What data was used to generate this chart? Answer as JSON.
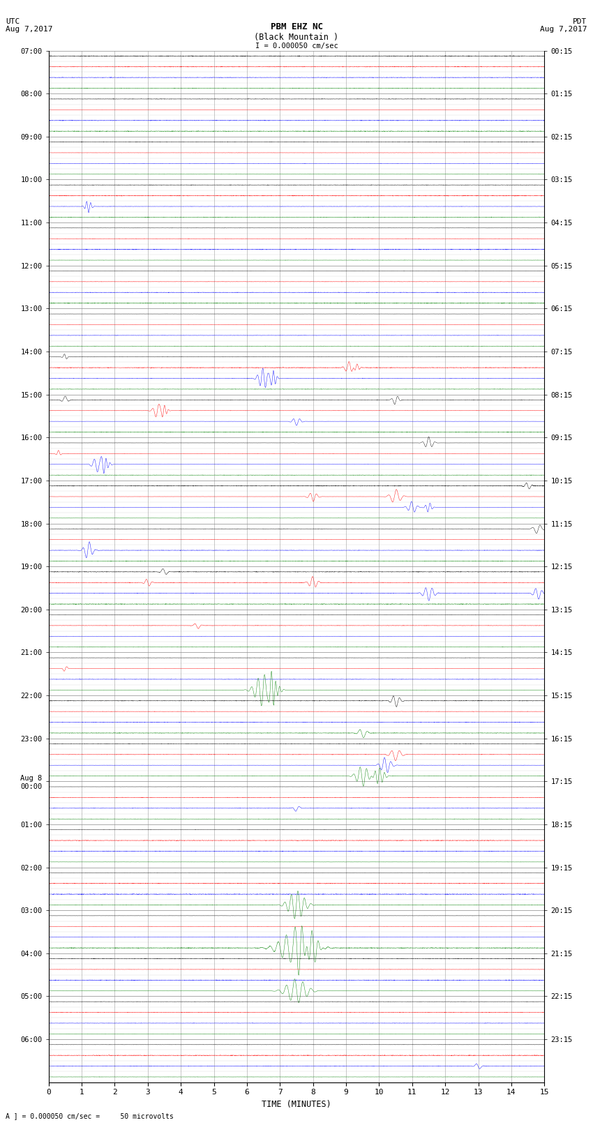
{
  "title_line1": "PBM EHZ NC",
  "title_line2": "(Black Mountain )",
  "scale_label": "I = 0.000050 cm/sec",
  "utc_label": "UTC",
  "utc_date": "Aug 7,2017",
  "pdt_label": "PDT",
  "pdt_date": "Aug 7,2017",
  "xlabel": "TIME (MINUTES)",
  "bottom_label": "A ] = 0.000050 cm/sec =     50 microvolts",
  "left_times_utc": [
    "07:00",
    "08:00",
    "09:00",
    "10:00",
    "11:00",
    "12:00",
    "13:00",
    "14:00",
    "15:00",
    "16:00",
    "17:00",
    "18:00",
    "19:00",
    "20:00",
    "21:00",
    "22:00",
    "23:00",
    "Aug 8\n00:00",
    "01:00",
    "02:00",
    "03:00",
    "04:00",
    "05:00",
    "06:00"
  ],
  "right_times_pdt": [
    "00:15",
    "01:15",
    "02:15",
    "03:15",
    "04:15",
    "05:15",
    "06:15",
    "07:15",
    "08:15",
    "09:15",
    "10:15",
    "11:15",
    "12:15",
    "13:15",
    "14:15",
    "15:15",
    "16:15",
    "17:15",
    "18:15",
    "19:15",
    "20:15",
    "21:15",
    "22:15",
    "23:15"
  ],
  "num_hours": 24,
  "traces_per_hour": 4,
  "x_min": 0,
  "x_max": 15,
  "colors_cycle": [
    "black",
    "red",
    "blue",
    "green"
  ],
  "background_color": "#ffffff",
  "grid_color_vertical": "#888888",
  "grid_color_horizontal": "#cccccc",
  "noise_amplitude": 0.12,
  "figsize": [
    8.5,
    16.13
  ]
}
